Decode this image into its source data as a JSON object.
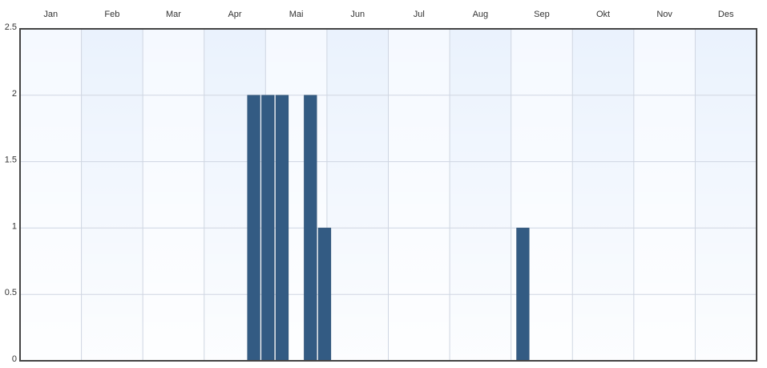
{
  "chart_data": {
    "type": "bar",
    "title": "",
    "xlabel": "",
    "ylabel": "",
    "x_tick_labels": [
      "Jan",
      "Feb",
      "Mar",
      "Apr",
      "Mai",
      "Jun",
      "Jul",
      "Aug",
      "Sep",
      "Okt",
      "Nov",
      "Des"
    ],
    "y_ticks": [
      0,
      0.5,
      1,
      1.5,
      2,
      2.5
    ],
    "y_tick_labels": [
      "0",
      "0.5",
      "1",
      "1.5",
      "2",
      "2.5"
    ],
    "ylim": [
      0,
      2.5
    ],
    "x_axis_position": "top",
    "grid": true,
    "bars": [
      {
        "week": 16,
        "value": 2
      },
      {
        "week": 17,
        "value": 2
      },
      {
        "week": 18,
        "value": 2
      },
      {
        "week": 20,
        "value": 2
      },
      {
        "week": 21,
        "value": 1
      },
      {
        "week": 35,
        "value": 1
      }
    ],
    "colors": {
      "bar": "#335b83",
      "bar_edge": "#2b4e71",
      "grid": "#cfd6e2",
      "border": "#444444",
      "band_light": "#f5f9ff",
      "band_dark": "#eaf2fd"
    }
  }
}
